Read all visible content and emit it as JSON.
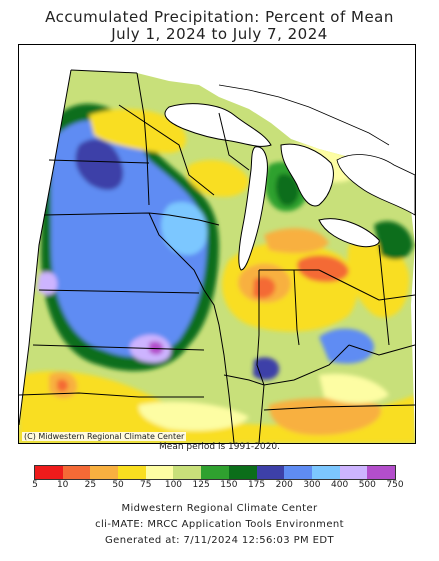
{
  "title_line1": "Accumulated Precipitation: Percent of Mean",
  "title_line2": "July 1, 2024 to July 7, 2024",
  "copyright": "(C) Midwestern Regional Climate Center",
  "mean_period": "Mean period is 1991-2020.",
  "legend": {
    "labels": [
      "5",
      "10",
      "25",
      "50",
      "75",
      "100",
      "125",
      "150",
      "175",
      "200",
      "300",
      "400",
      "500",
      "750"
    ],
    "colors": [
      "#ee1b1b",
      "#f46a36",
      "#f8b040",
      "#f9de20",
      "#fdfda3",
      "#c8e07a",
      "#2fa12f",
      "#0b6e1a",
      "#3d40a8",
      "#5f8cf3",
      "#7cc7ff",
      "#cdb4ff",
      "#b34ecb"
    ]
  },
  "footer": {
    "line1": "Midwestern Regional Climate Center",
    "line2": "cli-MATE: MRCC Application Tools Environment",
    "line3": "Generated at: 7/11/2024 12:56:03 PM EDT"
  }
}
